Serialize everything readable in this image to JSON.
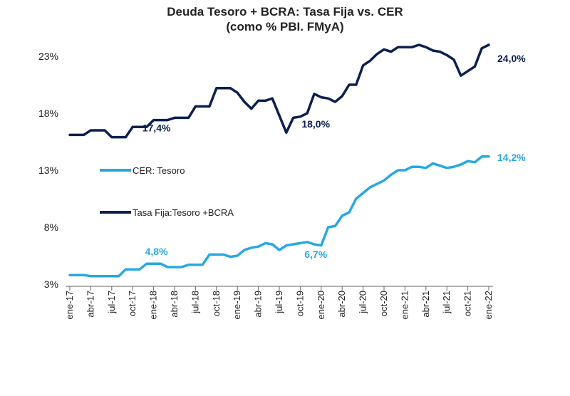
{
  "chart_data": {
    "type": "line",
    "title": "Deuda Tesoro + BCRA: Tasa Fija vs. CER",
    "subtitle": "(como % PBI. FMyA)",
    "xlabel": "",
    "ylabel": "",
    "ylim": [
      3,
      23
    ],
    "yticks": [
      3,
      8,
      13,
      18,
      23
    ],
    "ytick_labels": [
      "3%",
      "8%",
      "13%",
      "18%",
      "23%"
    ],
    "grid": false,
    "xtick_labels": [
      "ene-17",
      "abr-17",
      "jul-17",
      "oct-17",
      "ene-18",
      "abr-18",
      "jul-18",
      "oct-18",
      "ene-19",
      "abr-19",
      "jul-19",
      "oct-19",
      "ene-20",
      "abr-20",
      "jul-20",
      "oct-20",
      "ene-21",
      "abr-21",
      "jul-21",
      "oct-21",
      "ene-22"
    ],
    "colors": {
      "cer": "#29a8e0",
      "fija": "#0d1f4f"
    },
    "series": [
      {
        "name": "CER: Tesoro",
        "color": "#29a8e0",
        "values": [
          3.8,
          3.8,
          3.8,
          3.7,
          3.7,
          3.7,
          3.7,
          3.7,
          4.3,
          4.3,
          4.3,
          4.8,
          4.8,
          4.8,
          4.5,
          4.5,
          4.5,
          4.7,
          4.7,
          4.7,
          5.6,
          5.6,
          5.6,
          5.4,
          5.5,
          6.0,
          6.2,
          6.3,
          6.6,
          6.5,
          6.0,
          6.4,
          6.5,
          6.6,
          6.7,
          6.5,
          6.4,
          8.0,
          8.1,
          9.0,
          9.3,
          10.5,
          11.0,
          11.5,
          11.8,
          12.1,
          12.6,
          13.0,
          13.0,
          13.3,
          13.3,
          13.2,
          13.6,
          13.4,
          13.2,
          13.3,
          13.5,
          13.8,
          13.7,
          14.2,
          14.2
        ]
      },
      {
        "name": "Tasa Fija:Tesoro +BCRA",
        "color": "#0d1f4f",
        "values": [
          16.1,
          16.1,
          16.1,
          16.5,
          16.5,
          16.5,
          15.9,
          15.9,
          15.9,
          16.8,
          16.8,
          16.8,
          17.4,
          17.4,
          17.4,
          17.6,
          17.6,
          17.6,
          18.6,
          18.6,
          18.6,
          20.2,
          20.2,
          20.2,
          19.8,
          19.0,
          18.4,
          19.1,
          19.1,
          19.3,
          17.8,
          16.3,
          17.6,
          17.7,
          18.0,
          19.7,
          19.4,
          19.3,
          19.0,
          19.5,
          20.5,
          20.5,
          22.2,
          22.6,
          23.2,
          23.6,
          23.4,
          23.8,
          23.8,
          23.8,
          24.0,
          23.8,
          23.5,
          23.4,
          23.1,
          22.7,
          21.3,
          21.7,
          22.1,
          23.7,
          24.0
        ]
      }
    ],
    "annotations": [
      {
        "text": "17,4%",
        "series": 1,
        "index": 12
      },
      {
        "text": "18,0%",
        "series": 1,
        "index": 34
      },
      {
        "text": "24,0%",
        "series": 1,
        "index": 60
      },
      {
        "text": "4,8%",
        "series": 0,
        "index": 12
      },
      {
        "text": "6,7%",
        "series": 0,
        "index": 34
      },
      {
        "text": "14,2%",
        "series": 0,
        "index": 60
      }
    ],
    "legend": {
      "placement": "center-left",
      "entries": [
        "CER: Tesoro",
        "Tasa Fija:Tesoro +BCRA"
      ]
    }
  }
}
